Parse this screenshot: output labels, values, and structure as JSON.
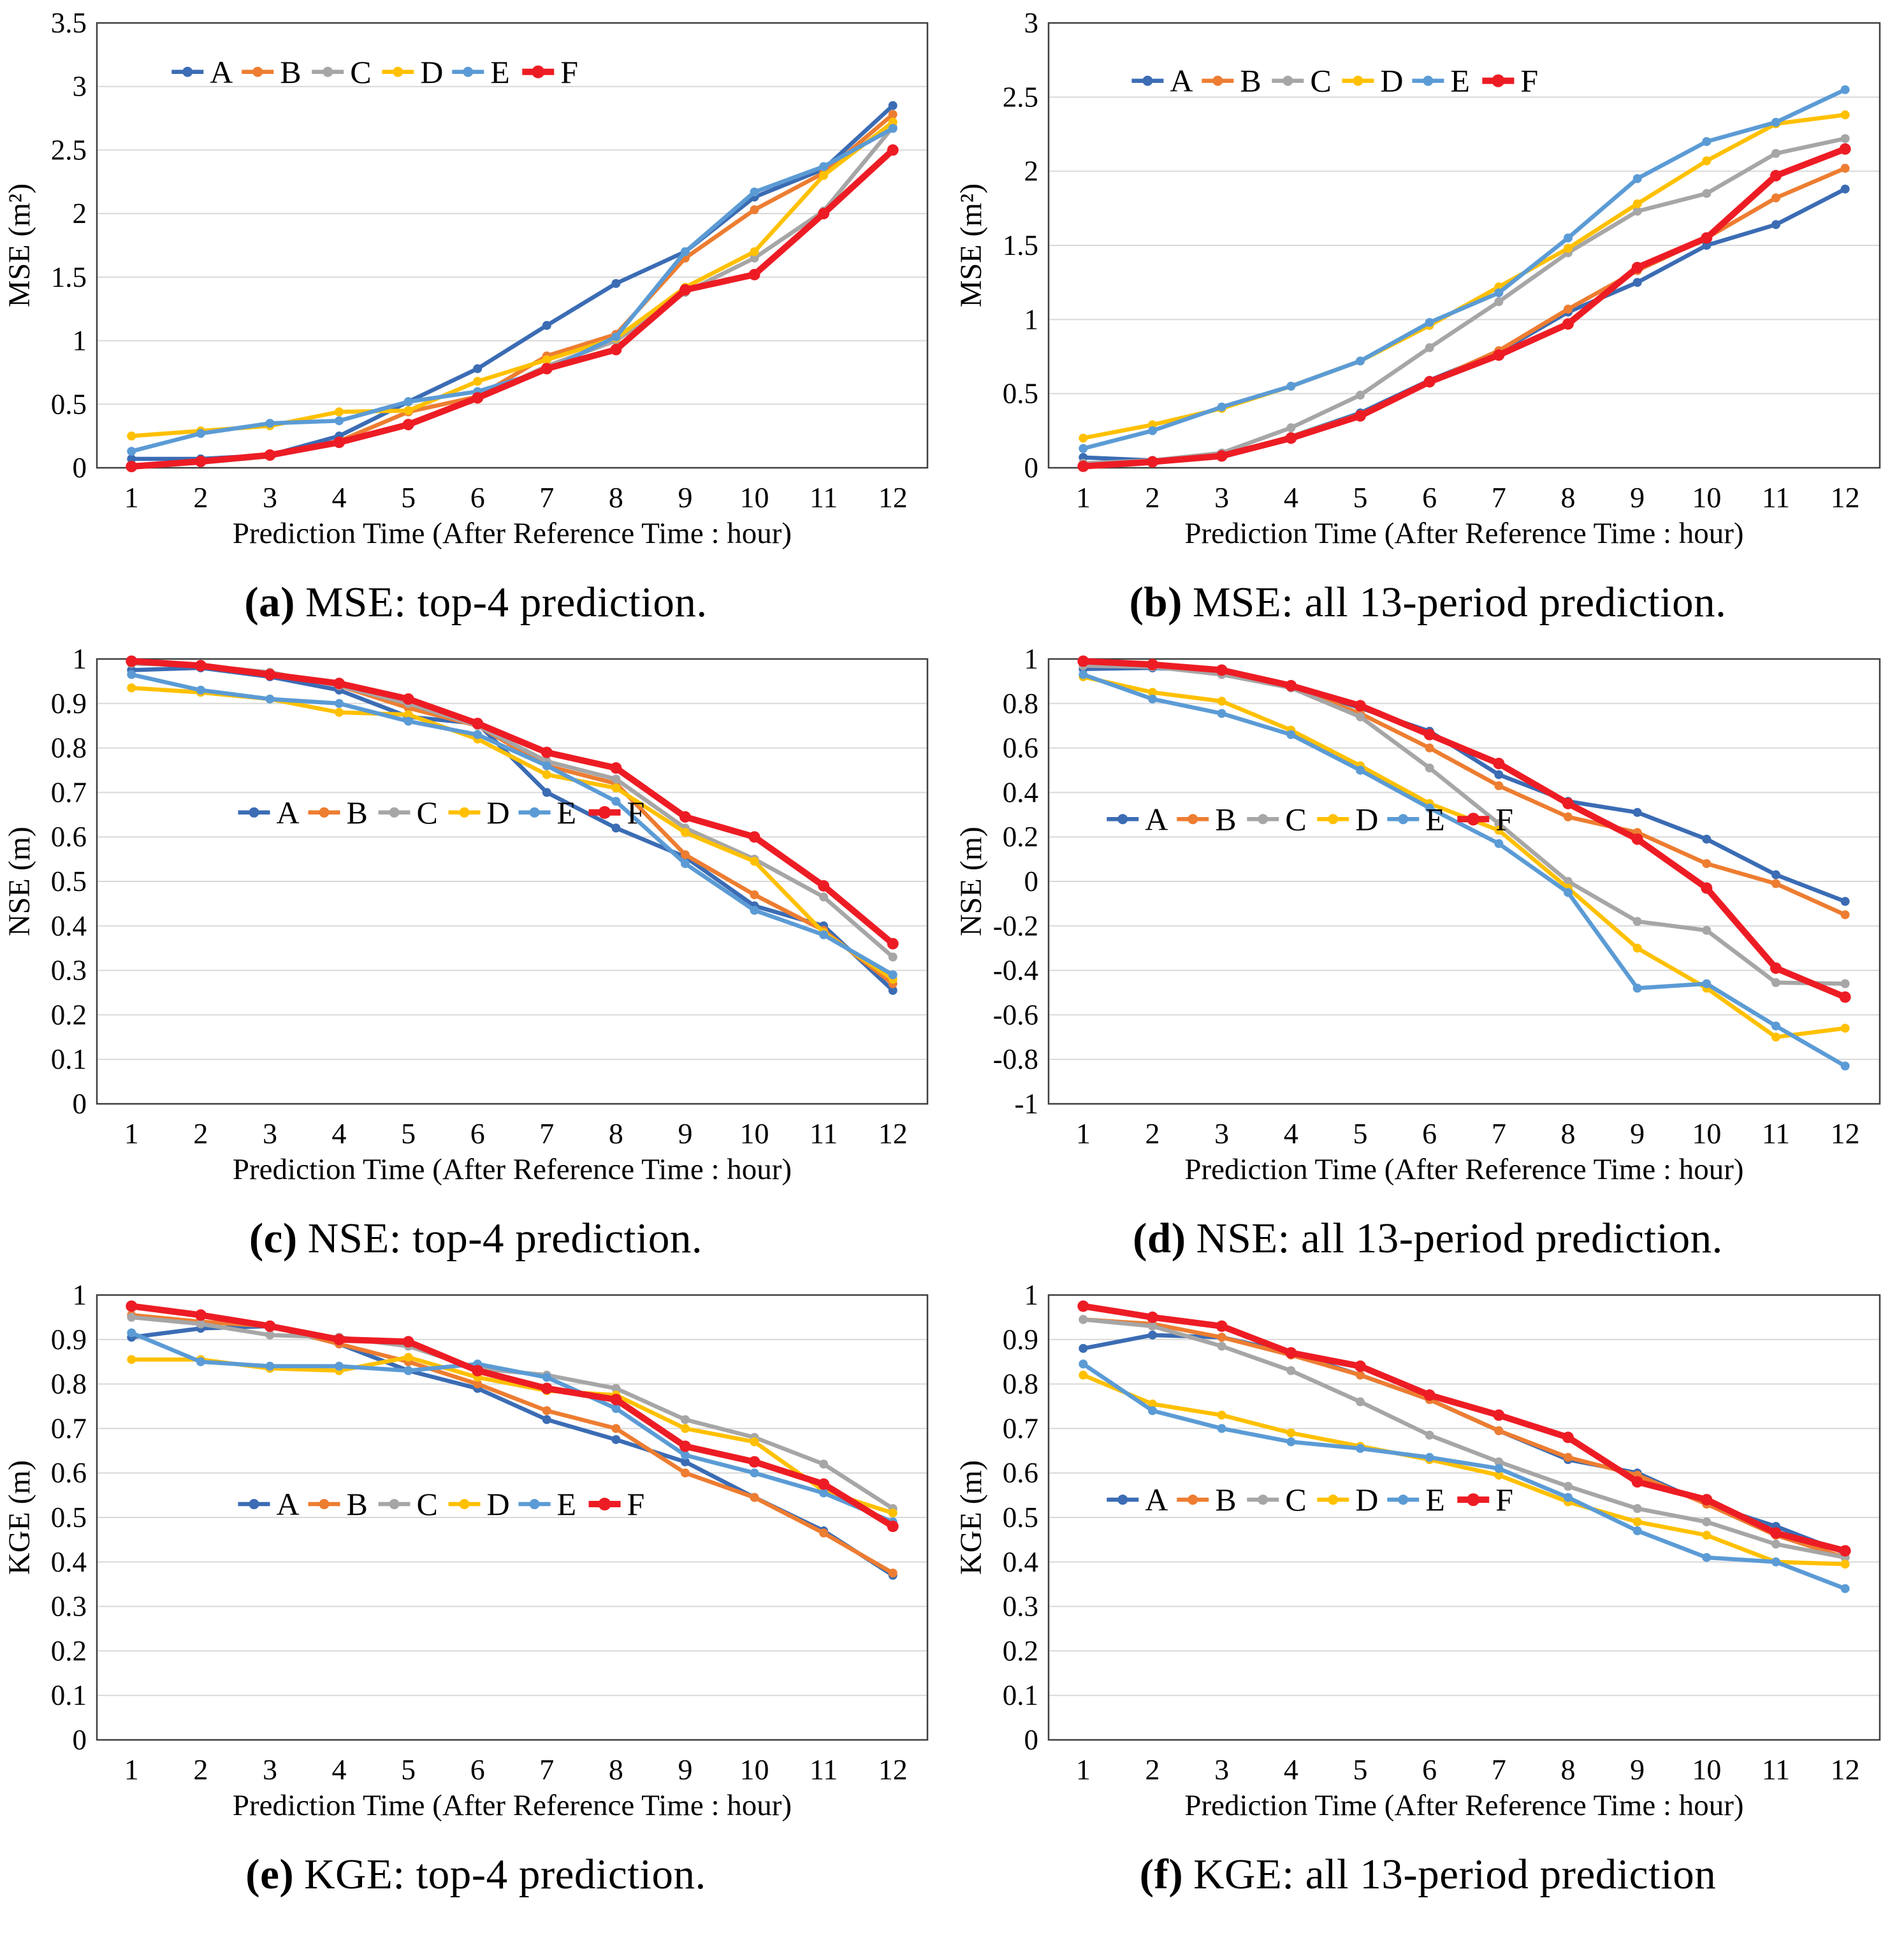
{
  "figure": {
    "caption_open": "(",
    "caption_close": ")",
    "series_styles": {
      "A": {
        "color": "#3b6cb4",
        "width": 6.5,
        "marker": 7
      },
      "B": {
        "color": "#ed7d31",
        "width": 6.5,
        "marker": 7
      },
      "C": {
        "color": "#a6a6a6",
        "width": 6.5,
        "marker": 7
      },
      "D": {
        "color": "#ffc000",
        "width": 6.5,
        "marker": 7
      },
      "E": {
        "color": "#5b9bd5",
        "width": 6.5,
        "marker": 7
      },
      "F": {
        "color": "#ed1c24",
        "width": 10,
        "marker": 9
      }
    },
    "grid_color": "#d9d9d9",
    "border_color": "#404040",
    "text_color": "#000000"
  },
  "chart_data": [
    {
      "type": "line",
      "caption": {
        "letter": "a",
        "text": "MSE: top-4 prediction."
      },
      "xlabel": "Prediction Time (After Reference Time : hour)",
      "ylabel": "MSE (m²)",
      "x": [
        1,
        2,
        3,
        4,
        5,
        6,
        7,
        8,
        9,
        10,
        11,
        12
      ],
      "ylim": [
        0,
        3.5
      ],
      "ystep": 0.5,
      "legend": {
        "fx": 0.09,
        "fy": 0.11
      },
      "series": [
        {
          "name": "A",
          "values": [
            0.07,
            0.07,
            0.1,
            0.25,
            0.52,
            0.78,
            1.12,
            1.45,
            1.7,
            2.13,
            2.35,
            2.85
          ]
        },
        {
          "name": "B",
          "values": [
            0.02,
            0.05,
            0.1,
            0.21,
            0.44,
            0.56,
            0.88,
            1.05,
            1.65,
            2.03,
            2.32,
            2.78
          ]
        },
        {
          "name": "C",
          "values": [
            0.02,
            0.04,
            0.09,
            0.2,
            0.35,
            0.55,
            0.8,
            1.0,
            1.38,
            1.65,
            2.02,
            2.68
          ]
        },
        {
          "name": "D",
          "values": [
            0.25,
            0.29,
            0.33,
            0.44,
            0.45,
            0.68,
            0.85,
            1.02,
            1.42,
            1.7,
            2.3,
            2.72
          ]
        },
        {
          "name": "E",
          "values": [
            0.13,
            0.27,
            0.35,
            0.37,
            0.52,
            0.6,
            0.77,
            1.03,
            1.7,
            2.17,
            2.37,
            2.67
          ]
        },
        {
          "name": "F",
          "values": [
            0.01,
            0.05,
            0.1,
            0.2,
            0.34,
            0.55,
            0.78,
            0.93,
            1.4,
            1.52,
            2.0,
            2.5
          ]
        }
      ]
    },
    {
      "type": "line",
      "caption": {
        "letter": "b",
        "text": "MSE: all 13-period prediction."
      },
      "xlabel": "Prediction Time (After Reference Time : hour)",
      "ylabel": "MSE (m²)",
      "x": [
        1,
        2,
        3,
        4,
        5,
        6,
        7,
        8,
        9,
        10,
        11,
        12
      ],
      "ylim": [
        0,
        3
      ],
      "ystep": 0.5,
      "legend": {
        "fx": 0.1,
        "fy": 0.13
      },
      "series": [
        {
          "name": "A",
          "values": [
            0.07,
            0.05,
            0.08,
            0.21,
            0.37,
            0.59,
            0.78,
            1.05,
            1.25,
            1.5,
            1.64,
            1.88
          ]
        },
        {
          "name": "B",
          "values": [
            0.02,
            0.04,
            0.08,
            0.21,
            0.36,
            0.58,
            0.79,
            1.07,
            1.33,
            1.55,
            1.82,
            2.02
          ]
        },
        {
          "name": "C",
          "values": [
            0.03,
            0.05,
            0.1,
            0.27,
            0.49,
            0.81,
            1.12,
            1.45,
            1.73,
            1.85,
            2.12,
            2.22
          ]
        },
        {
          "name": "D",
          "values": [
            0.2,
            0.29,
            0.4,
            0.55,
            0.72,
            0.96,
            1.22,
            1.48,
            1.78,
            2.07,
            2.32,
            2.38
          ]
        },
        {
          "name": "E",
          "values": [
            0.13,
            0.25,
            0.41,
            0.55,
            0.72,
            0.98,
            1.18,
            1.55,
            1.95,
            2.2,
            2.33,
            2.55
          ]
        },
        {
          "name": "F",
          "values": [
            0.01,
            0.04,
            0.08,
            0.2,
            0.35,
            0.58,
            0.76,
            0.97,
            1.35,
            1.55,
            1.97,
            2.15
          ]
        }
      ]
    },
    {
      "type": "line",
      "caption": {
        "letter": "c",
        "text": "NSE: top-4 prediction."
      },
      "xlabel": "Prediction Time (After Reference Time : hour)",
      "ylabel": "NSE (m)",
      "x": [
        1,
        2,
        3,
        4,
        5,
        6,
        7,
        8,
        9,
        10,
        11,
        12
      ],
      "ylim": [
        0,
        1
      ],
      "ystep": 0.1,
      "legend": {
        "fx": 0.17,
        "fy": 0.345
      },
      "series": [
        {
          "name": "A",
          "values": [
            0.975,
            0.98,
            0.96,
            0.93,
            0.87,
            0.855,
            0.7,
            0.62,
            0.555,
            0.445,
            0.4,
            0.255
          ]
        },
        {
          "name": "B",
          "values": [
            0.99,
            0.985,
            0.97,
            0.94,
            0.89,
            0.85,
            0.76,
            0.72,
            0.56,
            0.47,
            0.39,
            0.27
          ]
        },
        {
          "name": "C",
          "values": [
            0.99,
            0.985,
            0.97,
            0.94,
            0.9,
            0.85,
            0.77,
            0.73,
            0.62,
            0.55,
            0.465,
            0.33
          ]
        },
        {
          "name": "D",
          "values": [
            0.935,
            0.925,
            0.91,
            0.88,
            0.875,
            0.82,
            0.74,
            0.71,
            0.61,
            0.545,
            0.385,
            0.28
          ]
        },
        {
          "name": "E",
          "values": [
            0.965,
            0.93,
            0.91,
            0.9,
            0.86,
            0.83,
            0.76,
            0.68,
            0.54,
            0.435,
            0.38,
            0.29
          ]
        },
        {
          "name": "F",
          "values": [
            0.995,
            0.985,
            0.965,
            0.945,
            0.91,
            0.855,
            0.79,
            0.755,
            0.645,
            0.6,
            0.49,
            0.36
          ]
        }
      ]
    },
    {
      "type": "line",
      "caption": {
        "letter": "d",
        "text": "NSE: all 13-period prediction."
      },
      "xlabel": "Prediction Time (After Reference Time : hour)",
      "ylabel": "NSE (m)",
      "x": [
        1,
        2,
        3,
        4,
        5,
        6,
        7,
        8,
        9,
        10,
        11,
        12
      ],
      "ylim": [
        -1,
        1
      ],
      "ystep": 0.2,
      "legend": {
        "fx": 0.07,
        "fy": 0.36
      },
      "series": [
        {
          "name": "A",
          "values": [
            0.955,
            0.96,
            0.945,
            0.875,
            0.78,
            0.675,
            0.48,
            0.36,
            0.31,
            0.19,
            0.03,
            -0.09
          ]
        },
        {
          "name": "B",
          "values": [
            0.97,
            0.965,
            0.935,
            0.875,
            0.755,
            0.6,
            0.43,
            0.29,
            0.22,
            0.08,
            -0.01,
            -0.15
          ]
        },
        {
          "name": "C",
          "values": [
            0.97,
            0.965,
            0.93,
            0.87,
            0.74,
            0.51,
            0.26,
            0.0,
            -0.18,
            -0.22,
            -0.455,
            -0.46
          ]
        },
        {
          "name": "D",
          "values": [
            0.92,
            0.85,
            0.81,
            0.68,
            0.52,
            0.35,
            0.23,
            -0.03,
            -0.3,
            -0.48,
            -0.7,
            -0.66
          ]
        },
        {
          "name": "E",
          "values": [
            0.93,
            0.82,
            0.755,
            0.66,
            0.5,
            0.33,
            0.17,
            -0.05,
            -0.48,
            -0.46,
            -0.65,
            -0.83
          ]
        },
        {
          "name": "F",
          "values": [
            0.99,
            0.975,
            0.95,
            0.88,
            0.79,
            0.66,
            0.53,
            0.35,
            0.19,
            -0.03,
            -0.39,
            -0.52
          ]
        }
      ]
    },
    {
      "type": "line",
      "caption": {
        "letter": "e",
        "text": "KGE: top-4 prediction."
      },
      "xlabel": "Prediction Time (After Reference Time : hour)",
      "ylabel": "KGE (m)",
      "x": [
        1,
        2,
        3,
        4,
        5,
        6,
        7,
        8,
        9,
        10,
        11,
        12
      ],
      "ylim": [
        0,
        1
      ],
      "ystep": 0.1,
      "legend": {
        "fx": 0.17,
        "fy": 0.47
      },
      "series": [
        {
          "name": "A",
          "values": [
            0.905,
            0.925,
            0.93,
            0.89,
            0.83,
            0.79,
            0.72,
            0.675,
            0.625,
            0.545,
            0.47,
            0.37
          ]
        },
        {
          "name": "B",
          "values": [
            0.955,
            0.94,
            0.93,
            0.89,
            0.85,
            0.8,
            0.74,
            0.7,
            0.6,
            0.545,
            0.465,
            0.375
          ]
        },
        {
          "name": "C",
          "values": [
            0.95,
            0.935,
            0.91,
            0.905,
            0.885,
            0.835,
            0.82,
            0.79,
            0.72,
            0.68,
            0.62,
            0.52
          ]
        },
        {
          "name": "D",
          "values": [
            0.855,
            0.855,
            0.835,
            0.83,
            0.86,
            0.815,
            0.785,
            0.775,
            0.7,
            0.67,
            0.56,
            0.51
          ]
        },
        {
          "name": "E",
          "values": [
            0.915,
            0.85,
            0.84,
            0.84,
            0.83,
            0.845,
            0.815,
            0.745,
            0.64,
            0.6,
            0.555,
            0.49
          ]
        },
        {
          "name": "F",
          "values": [
            0.975,
            0.955,
            0.93,
            0.9,
            0.895,
            0.83,
            0.79,
            0.765,
            0.66,
            0.625,
            0.575,
            0.48
          ]
        }
      ]
    },
    {
      "type": "line",
      "caption": {
        "letter": "f",
        "text": "KGE: all 13-period prediction"
      },
      "xlabel": "Prediction Time (After Reference Time : hour)",
      "ylabel": "KGE (m)",
      "x": [
        1,
        2,
        3,
        4,
        5,
        6,
        7,
        8,
        9,
        10,
        11,
        12
      ],
      "ylim": [
        0,
        1
      ],
      "ystep": 0.1,
      "legend": {
        "fx": 0.07,
        "fy": 0.46
      },
      "series": [
        {
          "name": "A",
          "values": [
            0.88,
            0.91,
            0.905,
            0.87,
            0.82,
            0.765,
            0.695,
            0.63,
            0.6,
            0.53,
            0.48,
            0.42
          ]
        },
        {
          "name": "B",
          "values": [
            0.945,
            0.935,
            0.905,
            0.865,
            0.82,
            0.765,
            0.695,
            0.635,
            0.595,
            0.53,
            0.46,
            0.41
          ]
        },
        {
          "name": "C",
          "values": [
            0.945,
            0.93,
            0.885,
            0.83,
            0.76,
            0.685,
            0.625,
            0.57,
            0.52,
            0.49,
            0.44,
            0.41
          ]
        },
        {
          "name": "D",
          "values": [
            0.82,
            0.755,
            0.73,
            0.69,
            0.66,
            0.63,
            0.595,
            0.535,
            0.49,
            0.46,
            0.4,
            0.395
          ]
        },
        {
          "name": "E",
          "values": [
            0.845,
            0.74,
            0.7,
            0.67,
            0.655,
            0.635,
            0.61,
            0.545,
            0.47,
            0.41,
            0.4,
            0.34
          ]
        },
        {
          "name": "F",
          "values": [
            0.975,
            0.95,
            0.93,
            0.87,
            0.84,
            0.775,
            0.73,
            0.68,
            0.58,
            0.54,
            0.465,
            0.425
          ]
        }
      ]
    }
  ]
}
